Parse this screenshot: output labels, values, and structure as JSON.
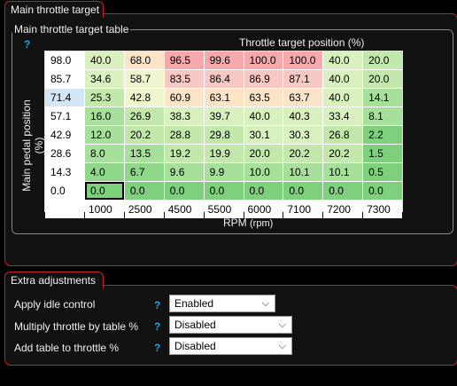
{
  "main": {
    "tab_title": "Main throttle target",
    "group_title": "Main throttle target table",
    "help_glyph": "?",
    "col_axis_title": "Throttle target position (%)",
    "row_axis_title": "Main pedal position (%)",
    "rpm_title": "RPM",
    "rpm_unit": "(rpm)",
    "selected_row_index": 2,
    "active_cell": {
      "row": 7,
      "col": 0
    },
    "row_headers": [
      "98.0",
      "85.7",
      "71.4",
      "57.1",
      "42.9",
      "28.6",
      "14.3",
      "0.0"
    ],
    "col_headers": [
      "1000",
      "2500",
      "4500",
      "5500",
      "6000",
      "7100",
      "7200",
      "7300"
    ],
    "rows": [
      [
        "40.0",
        "68.0",
        "96.5",
        "99.6",
        "100.0",
        "100.0",
        "40.0",
        "20.0"
      ],
      [
        "34.6",
        "58.7",
        "83.5",
        "86.4",
        "86.9",
        "87.1",
        "40.0",
        "20.0"
      ],
      [
        "25.3",
        "42.8",
        "60.9",
        "63.1",
        "63.5",
        "63.7",
        "40.0",
        "14.1"
      ],
      [
        "16.0",
        "26.9",
        "38.3",
        "39.7",
        "40.0",
        "40.3",
        "33.4",
        "8.1"
      ],
      [
        "12.0",
        "20.2",
        "28.8",
        "29.8",
        "30.1",
        "30.3",
        "26.8",
        "2.2"
      ],
      [
        "8.0",
        "13.5",
        "19.2",
        "19.9",
        "20.0",
        "20.2",
        "20.2",
        "1.5"
      ],
      [
        "4.0",
        "6.7",
        "9.6",
        "9.9",
        "10.0",
        "10.1",
        "10.1",
        "0.5"
      ],
      [
        "0.0",
        "0.0",
        "0.0",
        "0.0",
        "0.0",
        "0.0",
        "0.0",
        "0.0"
      ]
    ]
  },
  "extra": {
    "tab_title": "Extra adjustments",
    "help_glyph": "?",
    "chevron": "⌵",
    "settings": [
      {
        "label": "Apply idle control",
        "value": "Enabled"
      },
      {
        "label": "Multiply throttle by table %",
        "value": "Disabled"
      },
      {
        "label": "Add table to throttle %",
        "value": "Disabled"
      }
    ]
  },
  "colors": {
    "accent_border": "#c8202a",
    "help": "#1fa3e3",
    "selected_row_header": "#d4e6f6"
  }
}
